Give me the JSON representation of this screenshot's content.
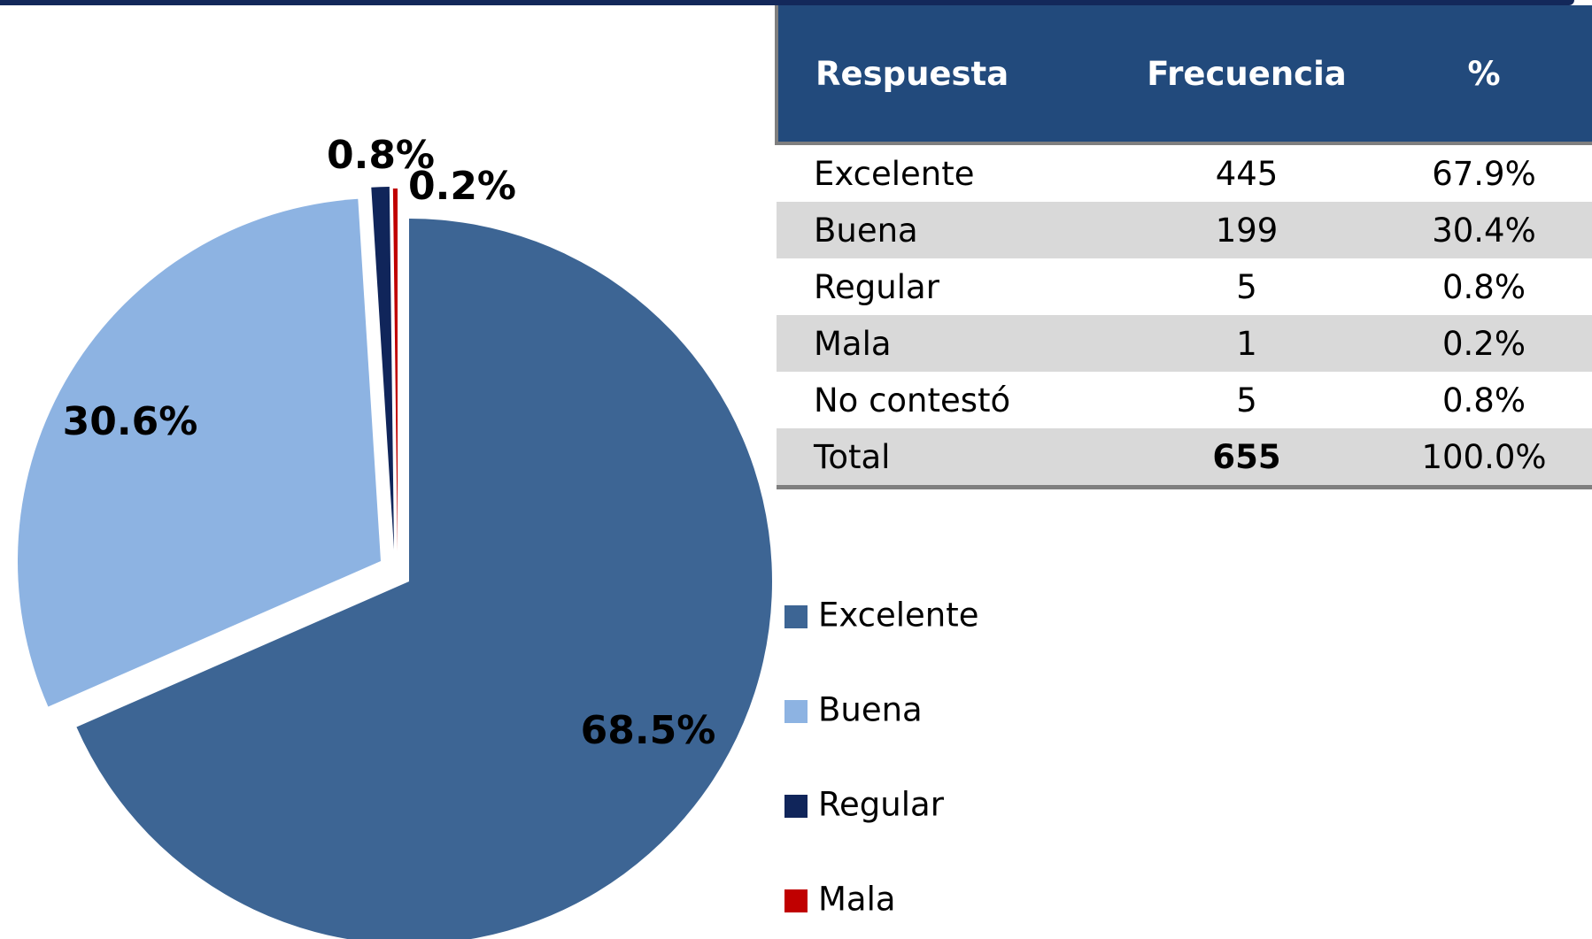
{
  "chart_data": {
    "type": "pie",
    "categories": [
      "Excelente",
      "Buena",
      "Regular",
      "Mala"
    ],
    "values": [
      68.5,
      30.6,
      0.8,
      0.2
    ],
    "value_labels": [
      "68.5%",
      "30.6%",
      "0.8%",
      "0.2%"
    ],
    "colors": [
      "#3d6594",
      "#8db3e2",
      "#10255a",
      "#c00000"
    ],
    "legend": "right"
  },
  "table": {
    "header": [
      "Respuesta",
      "Frecuencia",
      "%"
    ],
    "rows": [
      [
        "Excelente",
        "445",
        "67.9%"
      ],
      [
        "Buena",
        "199",
        "30.4%"
      ],
      [
        "Regular",
        "5",
        "0.8%"
      ],
      [
        "Mala",
        "1",
        "0.2%"
      ],
      [
        "No contestó",
        "5",
        "0.8%"
      ],
      [
        "Total",
        "655",
        "100.0%"
      ]
    ]
  }
}
